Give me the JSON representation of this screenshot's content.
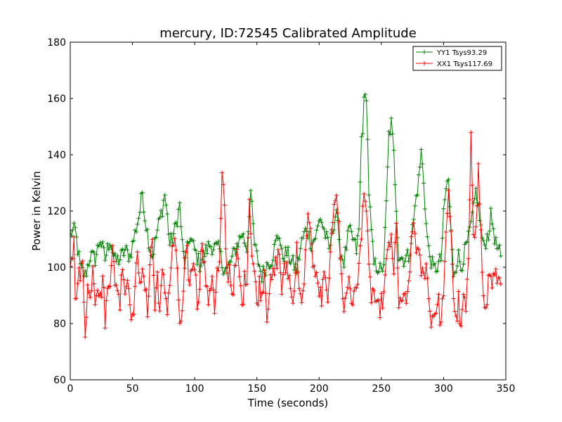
{
  "chart_data": {
    "type": "line",
    "title": "mercury, ID:72545 Calibrated Amplitude",
    "xlabel": "Time (seconds)",
    "ylabel": "Power in Kelvin",
    "xlim": [
      0,
      350
    ],
    "ylim": [
      60,
      180
    ],
    "xticks": [
      "0",
      "50",
      "100",
      "150",
      "200",
      "250",
      "300",
      "350"
    ],
    "yticks": [
      "60",
      "80",
      "100",
      "120",
      "140",
      "160",
      "180"
    ],
    "grid": false,
    "legend_position": "top-right",
    "marker": "+",
    "sample_step_seconds": 1,
    "series": [
      {
        "name": "YY1 Tsys93.29",
        "color": "#008000",
        "keypoints": [
          [
            0,
            112
          ],
          [
            4,
            113
          ],
          [
            8,
            100
          ],
          [
            12,
            97
          ],
          [
            16,
            104
          ],
          [
            20,
            103
          ],
          [
            24,
            110
          ],
          [
            28,
            103
          ],
          [
            32,
            110
          ],
          [
            36,
            102
          ],
          [
            40,
            103
          ],
          [
            44,
            106
          ],
          [
            48,
            104
          ],
          [
            52,
            112
          ],
          [
            56,
            120
          ],
          [
            58,
            127
          ],
          [
            60,
            118
          ],
          [
            64,
            107
          ],
          [
            66,
            104
          ],
          [
            70,
            113
          ],
          [
            74,
            121
          ],
          [
            76,
            126
          ],
          [
            78,
            118
          ],
          [
            80,
            108
          ],
          [
            84,
            113
          ],
          [
            88,
            122
          ],
          [
            90,
            108
          ],
          [
            92,
            101
          ],
          [
            96,
            111
          ],
          [
            100,
            106
          ],
          [
            104,
            101
          ],
          [
            108,
            105
          ],
          [
            112,
            108
          ],
          [
            116,
            107
          ],
          [
            120,
            106
          ],
          [
            122,
            101
          ],
          [
            126,
            99
          ],
          [
            130,
            103
          ],
          [
            134,
            108
          ],
          [
            138,
            112
          ],
          [
            142,
            107
          ],
          [
            145,
            127
          ],
          [
            148,
            108
          ],
          [
            150,
            104
          ],
          [
            154,
            97
          ],
          [
            158,
            101
          ],
          [
            162,
            103
          ],
          [
            166,
            110
          ],
          [
            168,
            112
          ],
          [
            170,
            104
          ],
          [
            174,
            105
          ],
          [
            178,
            102
          ],
          [
            182,
            99
          ],
          [
            186,
            109
          ],
          [
            190,
            114
          ],
          [
            194,
            108
          ],
          [
            198,
            112
          ],
          [
            201,
            118
          ],
          [
            204,
            113
          ],
          [
            206,
            110
          ],
          [
            208,
            106
          ],
          [
            212,
            116
          ],
          [
            214,
            121
          ],
          [
            216,
            107
          ],
          [
            220,
            102
          ],
          [
            224,
            113
          ],
          [
            228,
            109
          ],
          [
            230,
            106
          ],
          [
            232,
            113
          ],
          [
            234,
            146
          ],
          [
            235,
            150
          ],
          [
            236,
            158
          ],
          [
            238,
            162
          ],
          [
            240,
            127
          ],
          [
            242,
            112
          ],
          [
            244,
            101
          ],
          [
            248,
            100
          ],
          [
            250,
            98
          ],
          [
            252,
            102
          ],
          [
            254,
            122
          ],
          [
            256,
            147
          ],
          [
            258,
            151
          ],
          [
            260,
            140
          ],
          [
            262,
            122
          ],
          [
            264,
            104
          ],
          [
            268,
            103
          ],
          [
            272,
            104
          ],
          [
            274,
            110
          ],
          [
            276,
            117
          ],
          [
            278,
            125
          ],
          [
            280,
            131
          ],
          [
            282,
            141
          ],
          [
            284,
            131
          ],
          [
            286,
            115
          ],
          [
            288,
            106
          ],
          [
            292,
            99
          ],
          [
            296,
            101
          ],
          [
            298,
            103
          ],
          [
            300,
            118
          ],
          [
            302,
            128
          ],
          [
            304,
            131
          ],
          [
            306,
            112
          ],
          [
            308,
            98
          ],
          [
            312,
            104
          ],
          [
            314,
            100
          ],
          [
            318,
            107
          ],
          [
            320,
            110
          ],
          [
            324,
            120
          ],
          [
            326,
            127
          ],
          [
            328,
            121
          ],
          [
            332,
            107
          ],
          [
            336,
            112
          ],
          [
            338,
            118
          ],
          [
            340,
            114
          ],
          [
            342,
            108
          ],
          [
            346,
            104
          ]
        ]
      },
      {
        "name": "XX1 Tsys117.69",
        "color": "#ff0000",
        "keypoints": [
          [
            0,
            98
          ],
          [
            2,
            104
          ],
          [
            3,
            113
          ],
          [
            4,
            87
          ],
          [
            6,
            98
          ],
          [
            8,
            96
          ],
          [
            10,
            101
          ],
          [
            12,
            78
          ],
          [
            14,
            93
          ],
          [
            16,
            88
          ],
          [
            18,
            102
          ],
          [
            20,
            90
          ],
          [
            22,
            95
          ],
          [
            24,
            88
          ],
          [
            26,
            97
          ],
          [
            28,
            82
          ],
          [
            30,
            91
          ],
          [
            32,
            97
          ],
          [
            34,
            110
          ],
          [
            36,
            91
          ],
          [
            38,
            94
          ],
          [
            40,
            87
          ],
          [
            42,
            103
          ],
          [
            44,
            92
          ],
          [
            46,
            96
          ],
          [
            48,
            90
          ],
          [
            50,
            80
          ],
          [
            52,
            93
          ],
          [
            54,
            103
          ],
          [
            56,
            98
          ],
          [
            58,
            96
          ],
          [
            60,
            93
          ],
          [
            62,
            84
          ],
          [
            64,
            102
          ],
          [
            66,
            110
          ],
          [
            68,
            85
          ],
          [
            70,
            98
          ],
          [
            72,
            84
          ],
          [
            74,
            97
          ],
          [
            76,
            92
          ],
          [
            78,
            86
          ],
          [
            80,
            95
          ],
          [
            82,
            105
          ],
          [
            84,
            111
          ],
          [
            86,
            96
          ],
          [
            88,
            81
          ],
          [
            90,
            82
          ],
          [
            92,
            100
          ],
          [
            94,
            104
          ],
          [
            96,
            93
          ],
          [
            98,
            101
          ],
          [
            100,
            102
          ],
          [
            102,
            87
          ],
          [
            104,
            95
          ],
          [
            106,
            111
          ],
          [
            108,
            100
          ],
          [
            110,
            90
          ],
          [
            112,
            88
          ],
          [
            114,
            99
          ],
          [
            116,
            86
          ],
          [
            118,
            98
          ],
          [
            120,
            100
          ],
          [
            122,
            132
          ],
          [
            124,
            120
          ],
          [
            126,
            96
          ],
          [
            128,
            100
          ],
          [
            130,
            91
          ],
          [
            132,
            97
          ],
          [
            134,
            104
          ],
          [
            136,
            97
          ],
          [
            138,
            86
          ],
          [
            140,
            95
          ],
          [
            142,
            98
          ],
          [
            144,
            125
          ],
          [
            146,
            105
          ],
          [
            148,
            98
          ],
          [
            150,
            87
          ],
          [
            152,
            94
          ],
          [
            154,
            90
          ],
          [
            156,
            100
          ],
          [
            158,
            84
          ],
          [
            160,
            92
          ],
          [
            162,
            95
          ],
          [
            164,
            98
          ],
          [
            166,
            103
          ],
          [
            168,
            105
          ],
          [
            170,
            92
          ],
          [
            172,
            98
          ],
          [
            174,
            101
          ],
          [
            176,
            96
          ],
          [
            178,
            89
          ],
          [
            180,
            93
          ],
          [
            182,
            106
          ],
          [
            184,
            95
          ],
          [
            186,
            85
          ],
          [
            188,
            93
          ],
          [
            190,
            114
          ],
          [
            192,
            119
          ],
          [
            194,
            106
          ],
          [
            196,
            100
          ],
          [
            198,
            95
          ],
          [
            200,
            92
          ],
          [
            202,
            88
          ],
          [
            204,
            97
          ],
          [
            206,
            90
          ],
          [
            208,
            93
          ],
          [
            210,
            110
          ],
          [
            212,
            125
          ],
          [
            214,
            128
          ],
          [
            216,
            113
          ],
          [
            218,
            96
          ],
          [
            220,
            86
          ],
          [
            222,
            90
          ],
          [
            224,
            97
          ],
          [
            226,
            89
          ],
          [
            228,
            88
          ],
          [
            230,
            94
          ],
          [
            232,
            100
          ],
          [
            234,
            110
          ],
          [
            236,
            130
          ],
          [
            238,
            120
          ],
          [
            240,
            98
          ],
          [
            242,
            90
          ],
          [
            244,
            92
          ],
          [
            246,
            84
          ],
          [
            248,
            85
          ],
          [
            250,
            87
          ],
          [
            252,
            90
          ],
          [
            254,
            100
          ],
          [
            256,
            110
          ],
          [
            258,
            108
          ],
          [
            260,
            96
          ],
          [
            262,
            118
          ],
          [
            264,
            84
          ],
          [
            266,
            87
          ],
          [
            268,
            91
          ],
          [
            270,
            84
          ],
          [
            272,
            95
          ],
          [
            274,
            107
          ],
          [
            276,
            116
          ],
          [
            278,
            108
          ],
          [
            280,
            103
          ],
          [
            282,
            99
          ],
          [
            284,
            96
          ],
          [
            286,
            103
          ],
          [
            288,
            88
          ],
          [
            290,
            82
          ],
          [
            292,
            83
          ],
          [
            294,
            86
          ],
          [
            296,
            87
          ],
          [
            298,
            79
          ],
          [
            300,
            93
          ],
          [
            302,
            109
          ],
          [
            304,
            125
          ],
          [
            306,
            114
          ],
          [
            308,
            90
          ],
          [
            310,
            80
          ],
          [
            312,
            88
          ],
          [
            314,
            76
          ],
          [
            316,
            90
          ],
          [
            318,
            84
          ],
          [
            320,
            100
          ],
          [
            322,
            150
          ],
          [
            324,
            115
          ],
          [
            326,
            112
          ],
          [
            328,
            135
          ],
          [
            330,
            112
          ],
          [
            332,
            88
          ],
          [
            334,
            82
          ],
          [
            336,
            96
          ],
          [
            338,
            99
          ],
          [
            340,
            94
          ],
          [
            342,
            97
          ],
          [
            344,
            93
          ],
          [
            346,
            94
          ]
        ]
      }
    ]
  }
}
